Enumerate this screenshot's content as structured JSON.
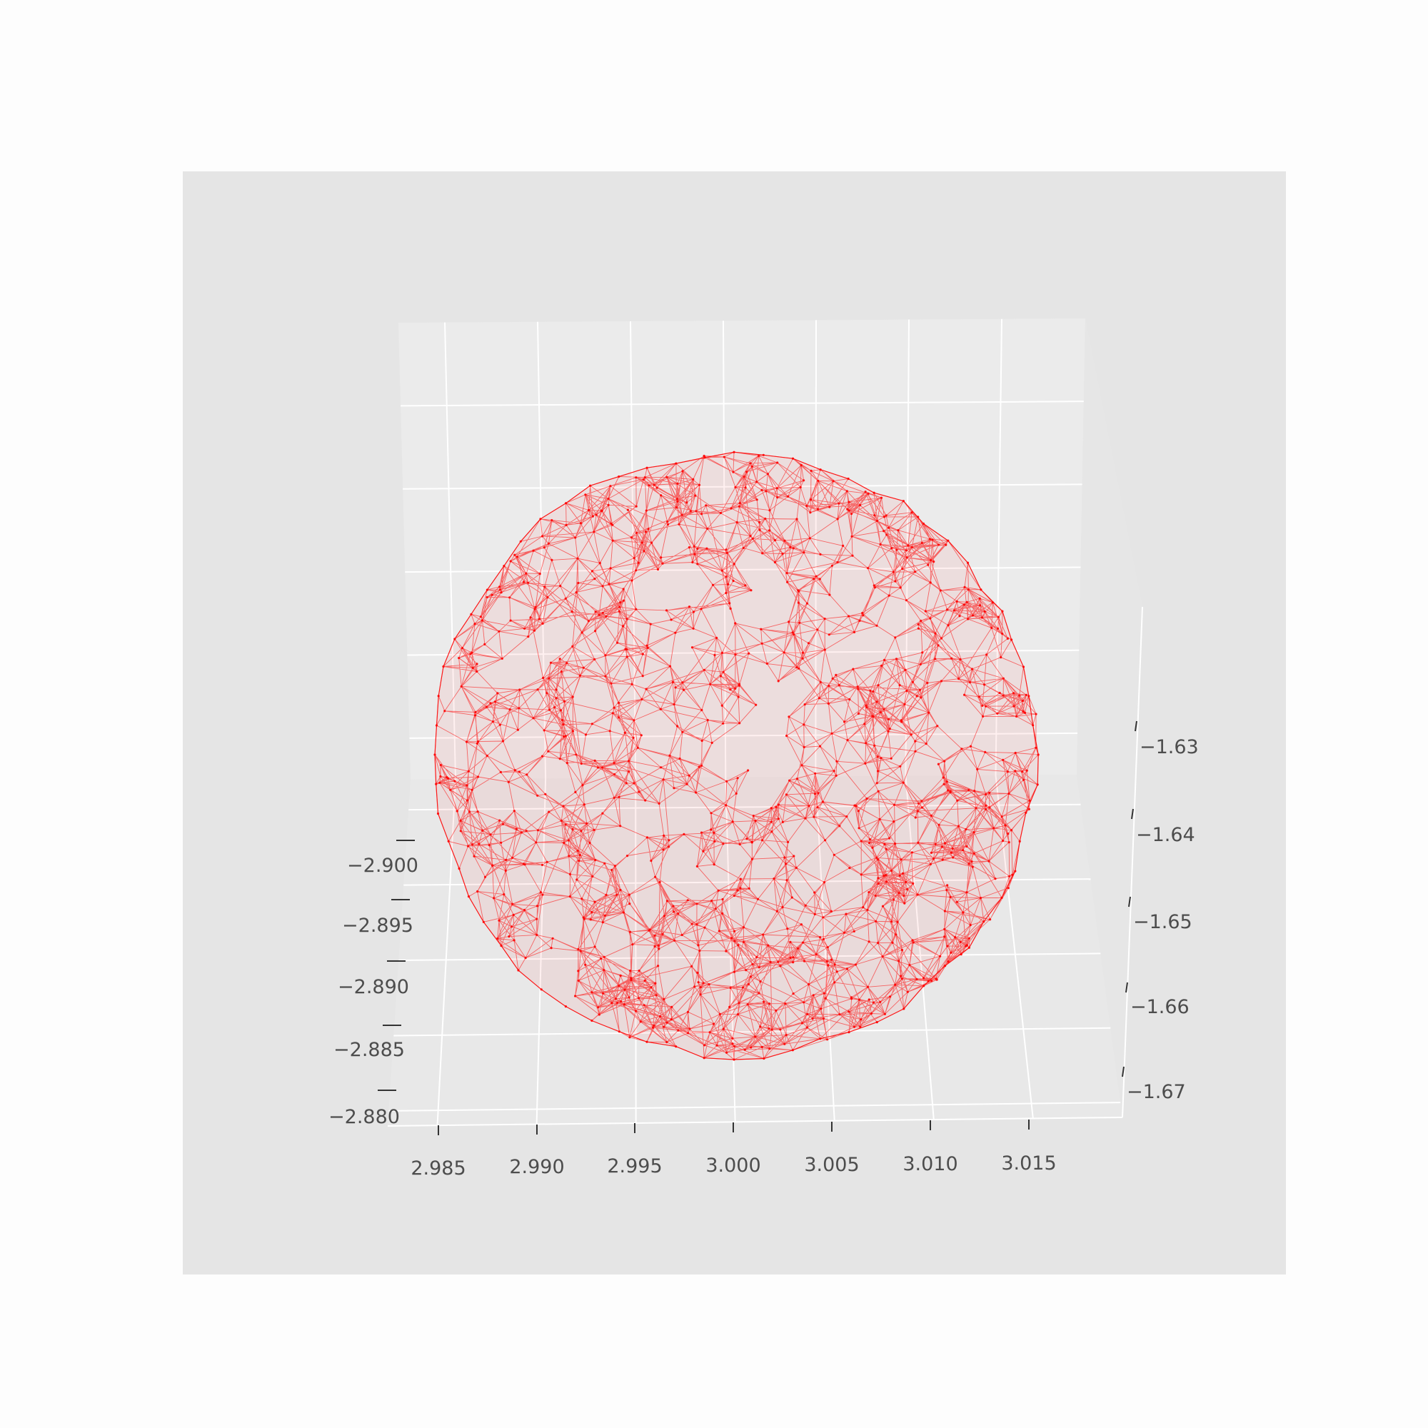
{
  "chart_data": {
    "type": "mesh3d",
    "title": "",
    "xlabel": "",
    "ylabel": "",
    "zlabel": "",
    "grid": true,
    "mesh_color": "#ff0000",
    "axes_background": "#e5e5e5",
    "pane_color": "#ebebeb",
    "grid_color": "#ffffff",
    "x_axis": {
      "range": [
        2.9825,
        3.0195
      ],
      "ticks": [
        2.985,
        2.99,
        2.995,
        3.0,
        3.005,
        3.01,
        3.015
      ],
      "tick_labels": [
        "2.985",
        "2.990",
        "2.995",
        "3.000",
        "3.005",
        "3.010",
        "3.015"
      ]
    },
    "y_axis": {
      "range": [
        -2.902,
        -2.879
      ],
      "ticks": [
        -2.9,
        -2.895,
        -2.89,
        -2.885,
        -2.88
      ],
      "tick_labels": [
        "−2.900",
        "−2.895",
        "−2.890",
        "−2.885",
        "−2.880"
      ]
    },
    "z_axis": {
      "range": [
        -1.675,
        -1.62
      ],
      "ticks": [
        -1.63,
        -1.64,
        -1.65,
        -1.66,
        -1.67
      ],
      "tick_labels": [
        "−1.63",
        "−1.64",
        "−1.65",
        "−1.66",
        "−1.67"
      ]
    },
    "shape": {
      "kind": "triangulated-sphere",
      "center": [
        3.0005,
        -2.8905,
        -1.648
      ],
      "radius": 0.0155
    }
  }
}
